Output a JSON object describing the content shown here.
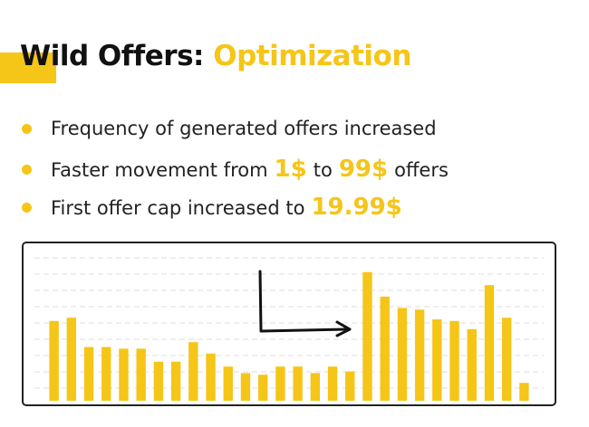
{
  "header": {
    "title": [
      "Wild Offers:",
      "Optimization"
    ]
  },
  "bullets": [
    [
      {
        "text": "Frequency of generated offers increased"
      }
    ],
    [
      {
        "text": "Faster movement from"
      },
      {
        "text": "1$",
        "em": true
      },
      {
        "text": "to"
      },
      {
        "text": "99$",
        "em": true
      },
      {
        "text": "offers"
      }
    ],
    [
      {
        "text": "First offer cap increased to"
      },
      {
        "text": "19.99$",
        "em": true
      }
    ]
  ],
  "chart_data": {
    "type": "bar",
    "color": "#f5c518",
    "ylim": [
      0,
      9
    ],
    "values": [
      4.9,
      5.1,
      3.3,
      3.3,
      3.2,
      3.2,
      2.4,
      2.4,
      3.6,
      2.9,
      2.1,
      1.7,
      1.6,
      2.1,
      2.1,
      1.7,
      2.1,
      1.8,
      7.9,
      6.4,
      5.7,
      5.6,
      5.0,
      4.9,
      4.4,
      7.1,
      5.1,
      1.1
    ]
  }
}
